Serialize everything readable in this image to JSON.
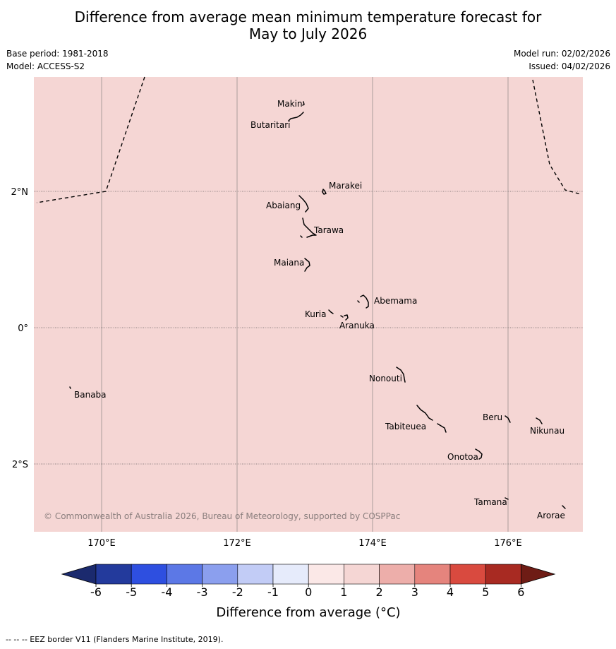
{
  "title": {
    "line1": "Difference from average mean minimum temperature forecast for",
    "line2": "May to July 2026"
  },
  "meta": {
    "base_period": "Base period: 1981-2018",
    "model": "Model: ACCESS-S2",
    "model_run": "Model run: 02/02/2026",
    "issued": "Issued: 04/02/2026"
  },
  "map": {
    "fill_color": "#f5d6d4",
    "fill_category": "1 to 2",
    "lon_range": [
      169,
      177.1
    ],
    "lat_range": [
      -3.0,
      3.8
    ],
    "lon_ticks": [
      {
        "value": 170,
        "label": "170°E"
      },
      {
        "value": 172,
        "label": "172°E"
      },
      {
        "value": 174,
        "label": "174°E"
      },
      {
        "value": 176,
        "label": "176°E"
      }
    ],
    "lat_ticks": [
      {
        "value": 2,
        "label": "2°N"
      },
      {
        "value": 0,
        "label": "0°"
      },
      {
        "value": -2,
        "label": "2°S"
      }
    ],
    "islands": [
      {
        "name": "Makin",
        "lon": 172.98,
        "lat": 3.37
      },
      {
        "name": "Butaritari",
        "lon": 172.84,
        "lat": 3.08
      },
      {
        "name": "Marakei",
        "lon": 173.3,
        "lat": 2.0
      },
      {
        "name": "Abaiang",
        "lon": 172.98,
        "lat": 1.85
      },
      {
        "name": "Tarawa",
        "lon": 173.05,
        "lat": 1.42
      },
      {
        "name": "Maiana",
        "lon": 173.0,
        "lat": 0.93
      },
      {
        "name": "Abemama",
        "lon": 173.87,
        "lat": 0.4
      },
      {
        "name": "Kuria",
        "lon": 173.4,
        "lat": 0.22
      },
      {
        "name": "Aranuka",
        "lon": 173.6,
        "lat": 0.16
      },
      {
        "name": "Nonouti",
        "lon": 174.4,
        "lat": -0.68
      },
      {
        "name": "Banaba",
        "lon": 169.55,
        "lat": -0.88
      },
      {
        "name": "Tabiteuea",
        "lon": 174.85,
        "lat": -1.3
      },
      {
        "name": "Beru",
        "lon": 176.0,
        "lat": -1.33
      },
      {
        "name": "Nikunau",
        "lon": 176.45,
        "lat": -1.35
      },
      {
        "name": "Onotoa",
        "lon": 175.57,
        "lat": -1.85
      },
      {
        "name": "Tamana",
        "lon": 175.98,
        "lat": -2.5
      },
      {
        "name": "Arorae",
        "lon": 176.82,
        "lat": -2.65
      }
    ],
    "copyright": "© Commonwealth of Australia 2026, Bureau of Meteorology, supported by COSPPac"
  },
  "colorbar": {
    "label": "Difference from average (°C)",
    "ticks": [
      "-6",
      "-5",
      "-4",
      "-3",
      "-2",
      "-1",
      "0",
      "1",
      "2",
      "3",
      "4",
      "5",
      "6"
    ],
    "colors": [
      "#233a9c",
      "#2e4fe0",
      "#5c78e6",
      "#8b9fee",
      "#c2ccf6",
      "#e6ebfb",
      "#fbe8e7",
      "#f5d6d4",
      "#edaeaa",
      "#e5847d",
      "#d94a3f",
      "#a82a22"
    ],
    "extend_low_color": "#1b2a6e",
    "extend_high_color": "#6e1c15"
  },
  "footer": "-- -- -- EEZ border V11 (Flanders Marine Institute, 2019)."
}
